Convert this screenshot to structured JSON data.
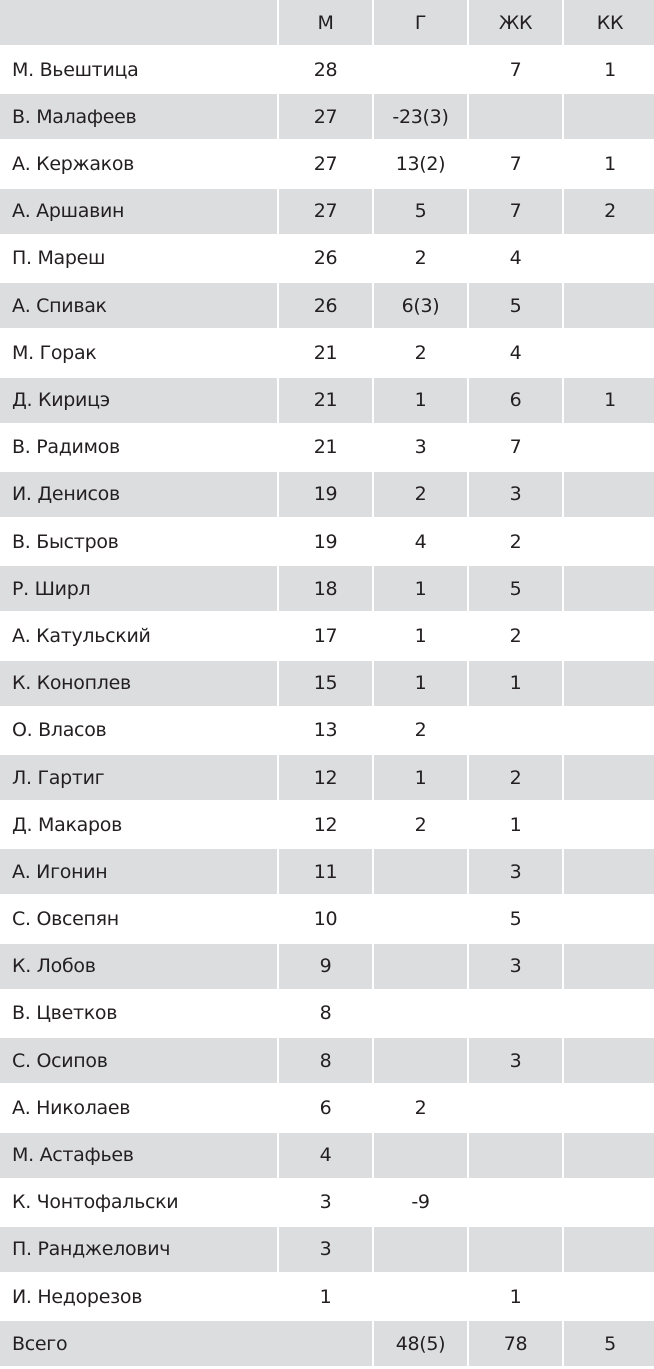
{
  "header": {
    "name": "",
    "m": "М",
    "g": "Г",
    "zhk": "ЖК",
    "kk": "КК"
  },
  "rows": [
    {
      "name": "М. Вьештица",
      "m": "28",
      "g": "",
      "zhk": "7",
      "kk": "1"
    },
    {
      "name": "В. Малафеев",
      "m": "27",
      "g": "-23(3)",
      "zhk": "",
      "kk": ""
    },
    {
      "name": "А. Кержаков",
      "m": "27",
      "g": "13(2)",
      "zhk": "7",
      "kk": "1"
    },
    {
      "name": "А. Аршавин",
      "m": "27",
      "g": "5",
      "zhk": "7",
      "kk": "2"
    },
    {
      "name": "П. Мареш",
      "m": "26",
      "g": "2",
      "zhk": "4",
      "kk": ""
    },
    {
      "name": "А. Спивак",
      "m": "26",
      "g": "6(3)",
      "zhk": "5",
      "kk": ""
    },
    {
      "name": "М. Горак",
      "m": "21",
      "g": "2",
      "zhk": "4",
      "kk": ""
    },
    {
      "name": "Д. Кирицэ",
      "m": "21",
      "g": "1",
      "zhk": "6",
      "kk": "1"
    },
    {
      "name": "В. Радимов",
      "m": "21",
      "g": "3",
      "zhk": "7",
      "kk": ""
    },
    {
      "name": "И. Денисов",
      "m": "19",
      "g": "2",
      "zhk": "3",
      "kk": ""
    },
    {
      "name": "В. Быстров",
      "m": "19",
      "g": "4",
      "zhk": "2",
      "kk": ""
    },
    {
      "name": "Р. Ширл",
      "m": "18",
      "g": "1",
      "zhk": "5",
      "kk": ""
    },
    {
      "name": "А. Катульский",
      "m": "17",
      "g": "1",
      "zhk": "2",
      "kk": ""
    },
    {
      "name": "К. Коноплев",
      "m": "15",
      "g": "1",
      "zhk": "1",
      "kk": ""
    },
    {
      "name": "О. Власов",
      "m": "13",
      "g": "2",
      "zhk": "",
      "kk": ""
    },
    {
      "name": "Л. Гартиг",
      "m": "12",
      "g": "1",
      "zhk": "2",
      "kk": ""
    },
    {
      "name": "Д. Макаров",
      "m": "12",
      "g": "2",
      "zhk": "1",
      "kk": ""
    },
    {
      "name": "А. Игонин",
      "m": "11",
      "g": "",
      "zhk": "3",
      "kk": ""
    },
    {
      "name": "С. Овсепян",
      "m": "10",
      "g": "",
      "zhk": "5",
      "kk": ""
    },
    {
      "name": "К. Лобов",
      "m": "9",
      "g": "",
      "zhk": "3",
      "kk": ""
    },
    {
      "name": "В. Цветков",
      "m": "8",
      "g": "",
      "zhk": "",
      "kk": ""
    },
    {
      "name": "С. Осипов",
      "m": "8",
      "g": "",
      "zhk": "3",
      "kk": ""
    },
    {
      "name": "А. Николаев",
      "m": "6",
      "g": "2",
      "zhk": "",
      "kk": ""
    },
    {
      "name": "М. Астафьев",
      "m": "4",
      "g": "",
      "zhk": "",
      "kk": ""
    },
    {
      "name": "К. Чонтофальски",
      "m": "3",
      "g": "-9",
      "zhk": "",
      "kk": ""
    },
    {
      "name": "П. Ранджелович",
      "m": "3",
      "g": "",
      "zhk": "",
      "kk": ""
    },
    {
      "name": "И. Недорезов",
      "m": "1",
      "g": "",
      "zhk": "1",
      "kk": ""
    }
  ],
  "total": {
    "name": "Всего",
    "g": "48(5)",
    "zhk": "78",
    "kk": "5"
  },
  "colors": {
    "row_gray": "#dcdddf",
    "text": "#231f20"
  }
}
